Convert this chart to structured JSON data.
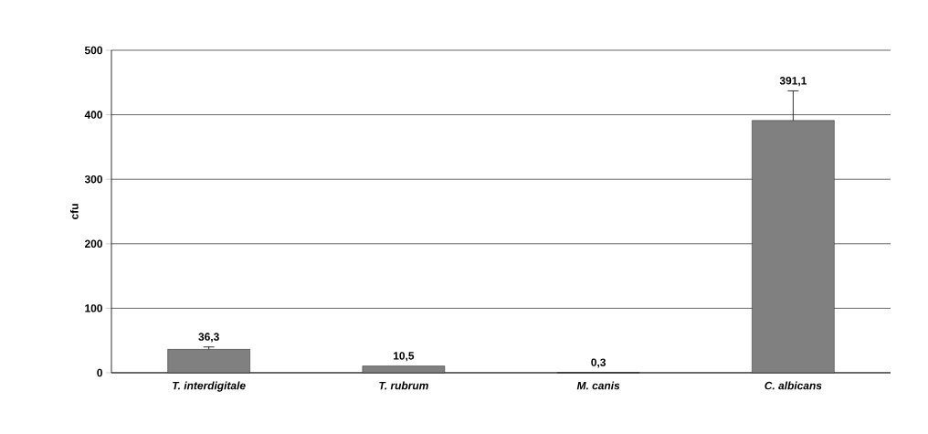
{
  "chart_data": {
    "type": "bar",
    "categories": [
      "T. interdigitale",
      "T. rubrum",
      "M. canis",
      "C. albicans"
    ],
    "values": [
      36.3,
      10.5,
      0.3,
      391.1
    ],
    "value_labels": [
      "36,3",
      "10,5",
      "0,3",
      "391,1"
    ],
    "errors": [
      [
        36.3,
        40
      ],
      null,
      null,
      [
        391.1,
        437
      ]
    ],
    "color": "#808080",
    "ylabel": "cfu",
    "ylim": [
      0,
      500
    ],
    "yticks": [
      0,
      100,
      200,
      300,
      400,
      500
    ],
    "grid": "y"
  }
}
